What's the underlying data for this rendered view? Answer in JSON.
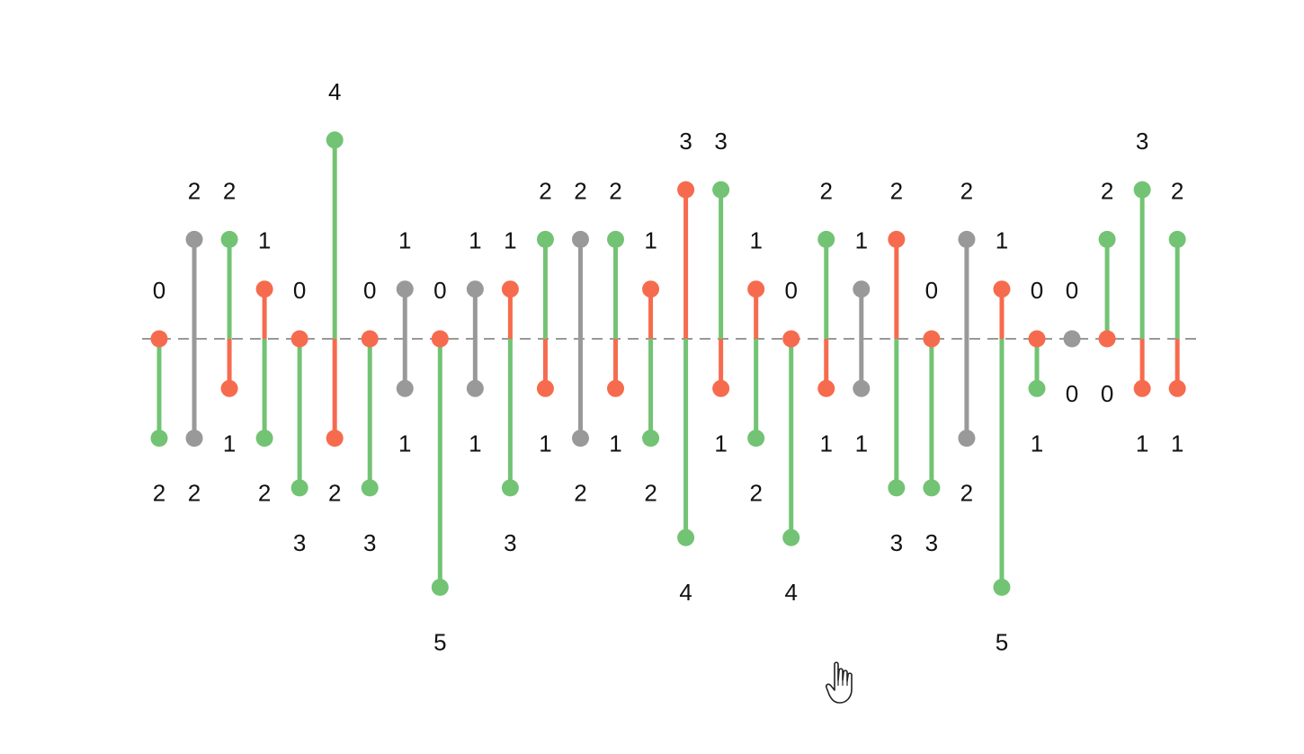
{
  "chart_data": {
    "type": "dumbbell",
    "title": "",
    "xlabel": "",
    "ylabel": "",
    "baseline": 0,
    "colors": {
      "positive": "#73c374",
      "negative": "#f66b4e",
      "neutral": "#999999",
      "baseline": "#999999",
      "label": "#111111"
    },
    "items": [
      {
        "top": 0,
        "bottom": 2
      },
      {
        "top": 2,
        "bottom": 2
      },
      {
        "top": 2,
        "bottom": 1
      },
      {
        "top": 1,
        "bottom": 2
      },
      {
        "top": 0,
        "bottom": 3
      },
      {
        "top": 4,
        "bottom": 2
      },
      {
        "top": 0,
        "bottom": 3
      },
      {
        "top": 1,
        "bottom": 1
      },
      {
        "top": 0,
        "bottom": 5
      },
      {
        "top": 1,
        "bottom": 1
      },
      {
        "top": 1,
        "bottom": 3
      },
      {
        "top": 2,
        "bottom": 1
      },
      {
        "top": 2,
        "bottom": 2
      },
      {
        "top": 2,
        "bottom": 1
      },
      {
        "top": 1,
        "bottom": 2
      },
      {
        "top": 3,
        "bottom": 4
      },
      {
        "top": 3,
        "bottom": 1
      },
      {
        "top": 1,
        "bottom": 2
      },
      {
        "top": 0,
        "bottom": 4
      },
      {
        "top": 2,
        "bottom": 1
      },
      {
        "top": 1,
        "bottom": 1
      },
      {
        "top": 2,
        "bottom": 3
      },
      {
        "top": 0,
        "bottom": 3
      },
      {
        "top": 2,
        "bottom": 2
      },
      {
        "top": 1,
        "bottom": 5
      },
      {
        "top": 0,
        "bottom": 1
      },
      {
        "top": 0,
        "bottom": 0
      },
      {
        "top": 2,
        "bottom": 0
      },
      {
        "top": 3,
        "bottom": 1
      },
      {
        "top": 2,
        "bottom": 1
      }
    ]
  },
  "cursor": {
    "icon": "hand-pointer-icon"
  }
}
